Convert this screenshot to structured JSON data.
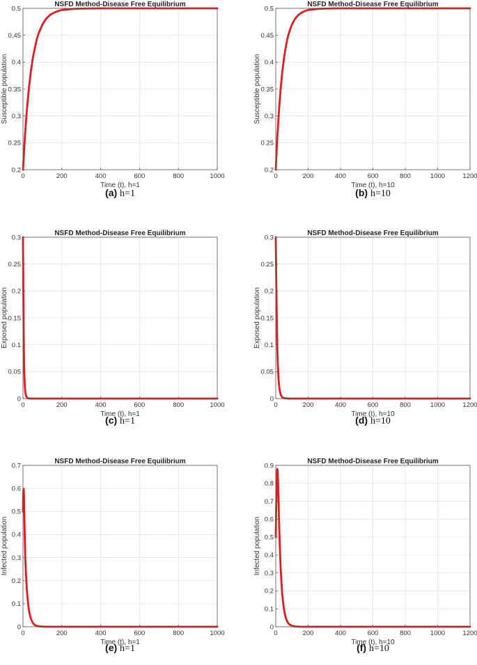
{
  "chart_data": [
    {
      "id": "a",
      "type": "line",
      "title": "NSFD Method-Disease Free Equilibrium",
      "xlabel": "Time (t), h=1",
      "ylabel": "Susceptible population",
      "xlim": [
        0,
        1000
      ],
      "ylim": [
        0.2,
        0.5
      ],
      "xticks": [
        0,
        200,
        400,
        600,
        800,
        1000
      ],
      "yticks": [
        0.2,
        0.25,
        0.3,
        0.35,
        0.4,
        0.45,
        0.5
      ],
      "ytick_labels": [
        "0.2",
        "0.25",
        "0.3",
        "0.35",
        "0.4",
        "0.45",
        "0.5"
      ],
      "grid": true,
      "series": [
        {
          "color": "#e41a1c",
          "x": [
            0,
            10,
            20,
            30,
            40,
            50,
            60,
            70,
            80,
            100,
            120,
            140,
            160,
            180,
            200,
            230,
            260,
            300,
            350,
            400,
            500,
            600,
            800,
            1000
          ],
          "y": [
            0.2,
            0.262,
            0.311,
            0.35,
            0.381,
            0.406,
            0.425,
            0.441,
            0.453,
            0.47,
            0.481,
            0.488,
            0.492,
            0.495,
            0.497,
            0.498,
            0.499,
            0.4995,
            0.4998,
            0.5,
            0.5,
            0.5,
            0.5,
            0.5
          ]
        }
      ],
      "caption_tag": "(a)",
      "caption_text": "h=1"
    },
    {
      "id": "b",
      "type": "line",
      "title": "NSFD Method-Disease Free Equilibrium",
      "xlabel": "Time (t), h=10",
      "ylabel": "Susceptible population",
      "xlim": [
        0,
        1200
      ],
      "ylim": [
        0.2,
        0.5
      ],
      "xticks": [
        0,
        200,
        400,
        600,
        800,
        1000,
        1200
      ],
      "yticks": [
        0.2,
        0.25,
        0.3,
        0.35,
        0.4,
        0.45,
        0.5
      ],
      "ytick_labels": [
        "0.2",
        "0.25",
        "0.3",
        "0.35",
        "0.4",
        "0.45",
        "0.5"
      ],
      "grid": true,
      "series": [
        {
          "color": "#e41a1c",
          "x": [
            0,
            10,
            20,
            30,
            40,
            50,
            60,
            70,
            80,
            100,
            120,
            140,
            160,
            180,
            200,
            230,
            260,
            300,
            350,
            400,
            500,
            600,
            800,
            1000,
            1200
          ],
          "y": [
            0.2,
            0.262,
            0.311,
            0.35,
            0.381,
            0.406,
            0.425,
            0.441,
            0.453,
            0.47,
            0.481,
            0.488,
            0.492,
            0.495,
            0.497,
            0.498,
            0.499,
            0.4995,
            0.4998,
            0.5,
            0.5,
            0.5,
            0.5,
            0.5,
            0.5
          ]
        }
      ],
      "caption_tag": "(b)",
      "caption_text": "h=10"
    },
    {
      "id": "c",
      "type": "line",
      "title": "NSFD Method-Disease Free Equilibrium",
      "xlabel": "Time (t), h=1",
      "ylabel": "Exposed population",
      "xlim": [
        0,
        1000
      ],
      "ylim": [
        0,
        0.3
      ],
      "xticks": [
        0,
        200,
        400,
        600,
        800,
        1000
      ],
      "yticks": [
        0,
        0.05,
        0.1,
        0.15,
        0.2,
        0.25,
        0.3
      ],
      "ytick_labels": [
        "0",
        "0.05",
        "0.1",
        "0.15",
        "0.2",
        "0.25",
        "0.3"
      ],
      "grid": true,
      "series": [
        {
          "color": "#e41a1c",
          "x": [
            0,
            1,
            2,
            3,
            4,
            5,
            6,
            8,
            10,
            12,
            15,
            20,
            25,
            30,
            40,
            60,
            100,
            200,
            400,
            600,
            800,
            1000
          ],
          "y": [
            0.3,
            0.245,
            0.19,
            0.145,
            0.11,
            0.082,
            0.06,
            0.035,
            0.02,
            0.012,
            0.006,
            0.002,
            0.0008,
            0.0003,
            0.0001,
            0,
            0,
            0,
            0,
            0,
            0,
            0
          ]
        }
      ],
      "caption_tag": "(c)",
      "caption_text": "h=1"
    },
    {
      "id": "d",
      "type": "line",
      "title": "NSFD Method-Disease Free Equilibrium",
      "xlabel": "Time (t), h=10",
      "ylabel": "Exposed population",
      "xlim": [
        0,
        1200
      ],
      "ylim": [
        0,
        0.3
      ],
      "xticks": [
        0,
        200,
        400,
        600,
        800,
        1000,
        1200
      ],
      "yticks": [
        0,
        0.05,
        0.1,
        0.15,
        0.2,
        0.25,
        0.3
      ],
      "ytick_labels": [
        "0",
        "0.05",
        "0.1",
        "0.15",
        "0.2",
        "0.25",
        "0.3"
      ],
      "grid": true,
      "series": [
        {
          "color": "#e41a1c",
          "x": [
            0,
            2,
            4,
            6,
            8,
            10,
            12,
            15,
            18,
            20,
            25,
            30,
            35,
            40,
            50,
            60,
            80,
            100,
            200,
            400,
            600,
            800,
            1000,
            1200
          ],
          "y": [
            0.3,
            0.25,
            0.2,
            0.155,
            0.12,
            0.09,
            0.07,
            0.048,
            0.033,
            0.026,
            0.014,
            0.008,
            0.0045,
            0.0025,
            0.001,
            0.0004,
            0.0001,
            0,
            0,
            0,
            0,
            0,
            0,
            0
          ]
        }
      ],
      "caption_tag": "(d)",
      "caption_text": "h=10"
    },
    {
      "id": "e",
      "type": "line",
      "title": "NSFD Method-Disease Free Equilibrium",
      "xlabel": "Time (t), h=1",
      "ylabel": "Infected population",
      "xlim": [
        0,
        1000
      ],
      "ylim": [
        0,
        0.7
      ],
      "xticks": [
        0,
        200,
        400,
        600,
        800,
        1000
      ],
      "yticks": [
        0,
        0.1,
        0.2,
        0.3,
        0.4,
        0.5,
        0.6,
        0.7
      ],
      "ytick_labels": [
        "0",
        "0.1",
        "0.2",
        "0.3",
        "0.4",
        "0.5",
        "0.6",
        "0.7"
      ],
      "grid": true,
      "series": [
        {
          "color": "#e41a1c",
          "x": [
            0,
            1,
            2,
            3,
            4,
            5,
            6,
            8,
            10,
            12,
            15,
            20,
            25,
            30,
            35,
            40,
            50,
            60,
            70,
            80,
            100,
            150,
            200,
            400,
            600,
            800,
            1000
          ],
          "y": [
            0.5,
            0.55,
            0.585,
            0.598,
            0.595,
            0.57,
            0.53,
            0.44,
            0.36,
            0.3,
            0.235,
            0.16,
            0.11,
            0.075,
            0.052,
            0.036,
            0.017,
            0.008,
            0.004,
            0.002,
            0.0005,
            0,
            0,
            0,
            0,
            0,
            0
          ]
        }
      ],
      "caption_tag": "(e)",
      "caption_text": "h=1"
    },
    {
      "id": "f",
      "type": "line",
      "title": "NSFD Method-Disease Free Equilibrium",
      "xlabel": "Time (t), h=10",
      "ylabel": "Infected population",
      "xlim": [
        0,
        1200
      ],
      "ylim": [
        0,
        0.9
      ],
      "xticks": [
        0,
        200,
        400,
        600,
        800,
        1000,
        1200
      ],
      "yticks": [
        0,
        0.1,
        0.2,
        0.3,
        0.4,
        0.5,
        0.6,
        0.7,
        0.8,
        0.9
      ],
      "ytick_labels": [
        "0",
        "0.1",
        "0.2",
        "0.3",
        "0.4",
        "0.5",
        "0.6",
        "0.7",
        "0.8",
        "0.9"
      ],
      "grid": true,
      "series": [
        {
          "color": "#e41a1c",
          "x": [
            0,
            2,
            4,
            6,
            8,
            10,
            12,
            15,
            18,
            20,
            25,
            30,
            35,
            40,
            50,
            60,
            70,
            80,
            100,
            120,
            150,
            200,
            400,
            600,
            800,
            1000,
            1200
          ],
          "y": [
            0.5,
            0.62,
            0.73,
            0.82,
            0.87,
            0.88,
            0.86,
            0.78,
            0.68,
            0.6,
            0.45,
            0.33,
            0.25,
            0.18,
            0.1,
            0.055,
            0.03,
            0.016,
            0.005,
            0.0015,
            0.0003,
            0,
            0,
            0,
            0,
            0,
            0
          ]
        }
      ],
      "caption_tag": "(f)",
      "caption_text": "h=10"
    }
  ]
}
